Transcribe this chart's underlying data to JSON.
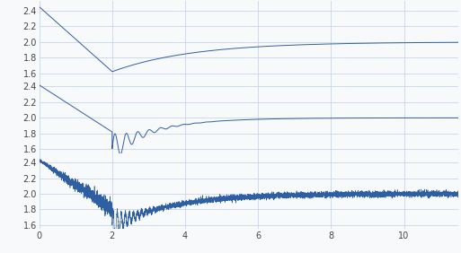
{
  "xlim": [
    0,
    11.5
  ],
  "xticks": [
    0,
    2,
    4,
    6,
    8,
    10
  ],
  "ylim": [
    1.55,
    2.52
  ],
  "yticks": [
    1.6,
    1.8,
    2.0,
    2.2,
    2.4
  ],
  "line_color": "#2e5fa3",
  "background_color": "#f8f9fb",
  "grid_color": "#c8d4e8",
  "t_end": 11.5,
  "t_step": 2.0,
  "y_start_1": 2.45,
  "y_start_2": 2.42,
  "y_start_3": 2.43,
  "y_final": 2.0,
  "y_dip_1": 1.62,
  "y_dip_2": 1.6,
  "y_dip_3": 1.58,
  "figsize": [
    5.13,
    2.82
  ],
  "dpi": 100
}
